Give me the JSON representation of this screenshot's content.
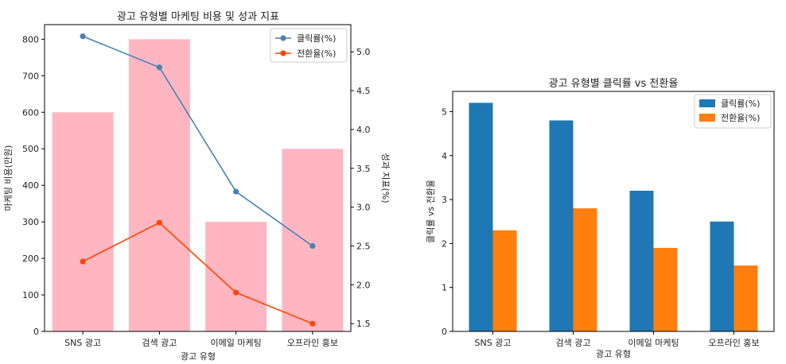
{
  "colors": {
    "bar_cost": "#FFB6C1",
    "line_click": "#4682B4",
    "line_conv": "#FF4500",
    "bar_click": "#1F77B4",
    "bar_conv": "#FF7F0E",
    "axis": "#000000",
    "text": "#222222"
  },
  "chart_data": [
    {
      "type": "bar+line",
      "title": "광고 유형별 마케팅 비용 및 성과 지표",
      "xlabel": "광고 유형",
      "ylabel": "마케팅 비용(만원)",
      "ylabel_right": "성과 지표(%)",
      "categories": [
        "SNS 광고",
        "검색 광고",
        "이메일 마케팅",
        "오프라인 홍보"
      ],
      "ylim": [
        0,
        840
      ],
      "yticks": [
        0,
        100,
        200,
        300,
        400,
        500,
        600,
        700,
        800
      ],
      "ylim_right": [
        1.4,
        5.35
      ],
      "yticks_right": [
        "1.5",
        "2.0",
        "2.5",
        "3.0",
        "3.5",
        "4.0",
        "4.5",
        "5.0"
      ],
      "bars": {
        "values": [
          600,
          800,
          300,
          500
        ]
      },
      "series": [
        {
          "name": "클릭률(%)",
          "values": [
            5.2,
            4.8,
            3.2,
            2.5
          ]
        },
        {
          "name": "전환율(%)",
          "values": [
            2.3,
            2.8,
            1.9,
            1.5
          ]
        }
      ],
      "legend": "top-right",
      "grid": false
    },
    {
      "type": "bar",
      "title": "광고 유형별 클릭률 vs 전환율",
      "xlabel": "광고 유형",
      "ylabel": "클릭률 vs 전환율",
      "categories": [
        "SNS 광고",
        "검색 광고",
        "이메일 마케팅",
        "오프라인 홍보"
      ],
      "ylim": [
        0,
        5.46
      ],
      "yticks": [
        "0",
        "1",
        "2",
        "3",
        "4",
        "5"
      ],
      "series": [
        {
          "name": "클릭률(%)",
          "values": [
            5.2,
            4.8,
            3.2,
            2.5
          ]
        },
        {
          "name": "전환율(%)",
          "values": [
            2.3,
            2.8,
            1.9,
            1.5
          ]
        }
      ],
      "legend": "top-right",
      "grid": false
    }
  ]
}
